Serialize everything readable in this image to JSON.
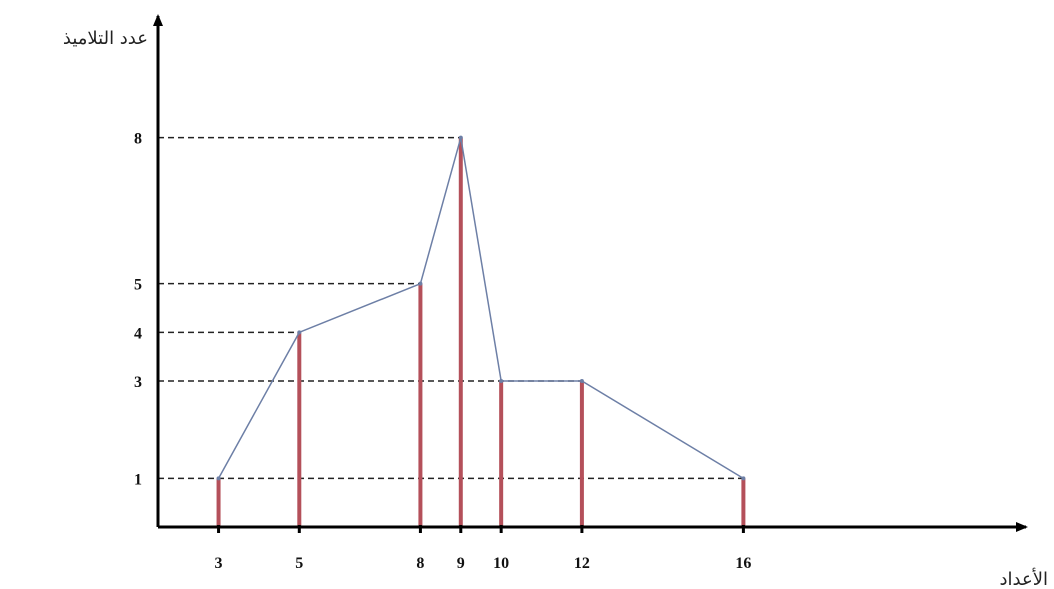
{
  "chart_data": {
    "type": "line",
    "title": "",
    "xlabel": "الأعداد",
    "ylabel": "عدد التلاميذ",
    "x": [
      3,
      5,
      8,
      9,
      10,
      12,
      16
    ],
    "y": [
      1,
      4,
      5,
      8,
      3,
      3,
      1
    ],
    "x_ticks": [
      "3",
      "5",
      "8",
      "9",
      "10",
      "12",
      "16"
    ],
    "y_ticks": [
      "1",
      "3",
      "4",
      "5",
      "8"
    ],
    "xlim": [
      1.5,
      23
    ],
    "ylim": [
      0,
      10.5
    ],
    "grid": false,
    "guide_lines": "dashed horizontal lines from y-axis to each point",
    "colors": {
      "bars": "#b4505a",
      "polygon": "#6d7fa6",
      "guides": "#222222",
      "axes": "#000000"
    }
  }
}
